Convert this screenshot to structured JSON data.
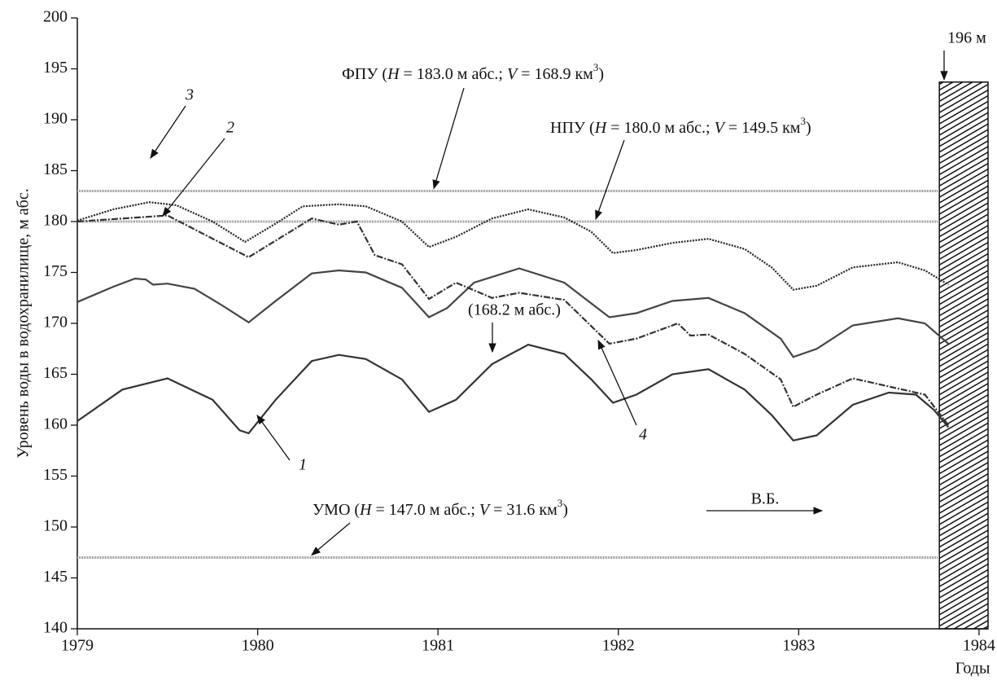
{
  "chart_data": {
    "type": "line",
    "y_label": "Уровень воды в водохранилище, м абс.",
    "x_label": "Годы",
    "xlim": [
      1979,
      1984.05
    ],
    "xticks": [
      1979,
      1980,
      1981,
      1982,
      1983,
      1984
    ],
    "ylim": [
      140,
      200
    ],
    "yticks": [
      140,
      145,
      150,
      155,
      160,
      165,
      170,
      175,
      180,
      185,
      190,
      195,
      200
    ],
    "series": [
      {
        "name": "1",
        "color": "#333333",
        "style": "solid",
        "x": [
          1979,
          1979.25,
          1979.5,
          1979.75,
          1979.9,
          1979.95,
          1980.1,
          1980.3,
          1980.45,
          1980.6,
          1980.8,
          1980.95,
          1981.1,
          1981.3,
          1981.5,
          1981.7,
          1981.85,
          1981.97,
          1982.1,
          1982.3,
          1982.5,
          1982.7,
          1982.85,
          1982.97,
          1983.1,
          1983.3,
          1983.5,
          1983.65,
          1983.75,
          1983.83
        ],
        "values": [
          160.4,
          163.5,
          164.6,
          162.5,
          159.5,
          159.2,
          162.5,
          166.3,
          166.9,
          166.5,
          164.5,
          161.3,
          162.5,
          166.0,
          167.9,
          167.0,
          164.5,
          162.2,
          163.0,
          165.0,
          165.5,
          163.5,
          161.0,
          158.5,
          159.0,
          162.0,
          163.2,
          163.0,
          161.5,
          159.8
        ]
      },
      {
        "name": "2",
        "color": "#444444",
        "style": "solid",
        "x": [
          1979,
          1979.2,
          1979.32,
          1979.38,
          1979.42,
          1979.5,
          1979.65,
          1979.8,
          1979.95,
          1980.1,
          1980.3,
          1980.45,
          1980.6,
          1980.8,
          1980.95,
          1981.05,
          1981.2,
          1981.45,
          1981.7,
          1981.95,
          1982.1,
          1982.3,
          1982.5,
          1982.7,
          1982.9,
          1982.97,
          1983.1,
          1983.3,
          1983.55,
          1983.7,
          1983.83
        ],
        "values": [
          172.1,
          173.6,
          174.4,
          174.3,
          173.8,
          173.9,
          173.4,
          171.8,
          170.1,
          172.2,
          174.9,
          175.2,
          175.0,
          173.5,
          170.6,
          171.5,
          174.0,
          175.4,
          174.0,
          170.6,
          171.0,
          172.2,
          172.5,
          171.0,
          168.5,
          166.7,
          167.5,
          169.8,
          170.5,
          170.0,
          168.0
        ]
      },
      {
        "name": "3",
        "color": "#222222",
        "style": "dotted",
        "x": [
          1979,
          1979.2,
          1979.4,
          1979.55,
          1979.75,
          1979.93,
          1980.1,
          1980.25,
          1980.45,
          1980.6,
          1980.8,
          1980.95,
          1981.1,
          1981.3,
          1981.5,
          1981.7,
          1981.85,
          1981.97,
          1982.1,
          1982.3,
          1982.5,
          1982.7,
          1982.85,
          1982.97,
          1983.1,
          1983.3,
          1983.55,
          1983.7,
          1983.83
        ],
        "values": [
          180.1,
          181.2,
          181.9,
          181.6,
          180.0,
          178.0,
          179.8,
          181.5,
          181.7,
          181.5,
          180.0,
          177.5,
          178.5,
          180.3,
          181.2,
          180.4,
          179.0,
          176.9,
          177.2,
          177.9,
          178.3,
          177.3,
          175.5,
          173.3,
          173.7,
          175.5,
          176.0,
          175.2,
          173.8
        ]
      },
      {
        "name": "4",
        "color": "#333333",
        "style": "dashdot",
        "x": [
          1979,
          1979.5,
          1979.95,
          1980.3,
          1980.45,
          1980.55,
          1980.65,
          1980.8,
          1980.95,
          1981.1,
          1981.3,
          1981.45,
          1981.7,
          1981.95,
          1982.1,
          1982.33,
          1982.4,
          1982.5,
          1982.7,
          1982.9,
          1982.97,
          1983.1,
          1983.3,
          1983.5,
          1983.7,
          1983.83
        ],
        "values": [
          180.0,
          180.6,
          176.5,
          180.3,
          179.7,
          180.0,
          176.7,
          175.8,
          172.4,
          174.0,
          172.5,
          173.0,
          172.3,
          168.0,
          168.5,
          170.0,
          168.8,
          168.9,
          167.0,
          164.5,
          161.8,
          163.0,
          164.6,
          163.8,
          163.0,
          160.0
        ]
      }
    ],
    "ref_lines": [
      {
        "value": 183.0,
        "label_parts": [
          "ФПУ (",
          "H",
          " = 183.0 м абс.; ",
          "V",
          " = 168.9 км",
          "3",
          ")"
        ]
      },
      {
        "value": 180.0,
        "label_parts": [
          "НПУ (",
          "H",
          " = 180.0 м абс.; ",
          "V",
          " = 149.5 км",
          "3",
          ")"
        ]
      },
      {
        "value": 147.0,
        "label_parts": [
          "УМО (",
          "H",
          " = 147.0 м абс.; ",
          "V",
          " = 31.6 км",
          "3",
          ")"
        ]
      }
    ],
    "annotations": [
      "(168.2 м абс.)",
      "В.Б."
    ],
    "dam": {
      "label": "196 м",
      "xlim": [
        1983.78,
        1984.05
      ],
      "top": 193.7
    }
  }
}
